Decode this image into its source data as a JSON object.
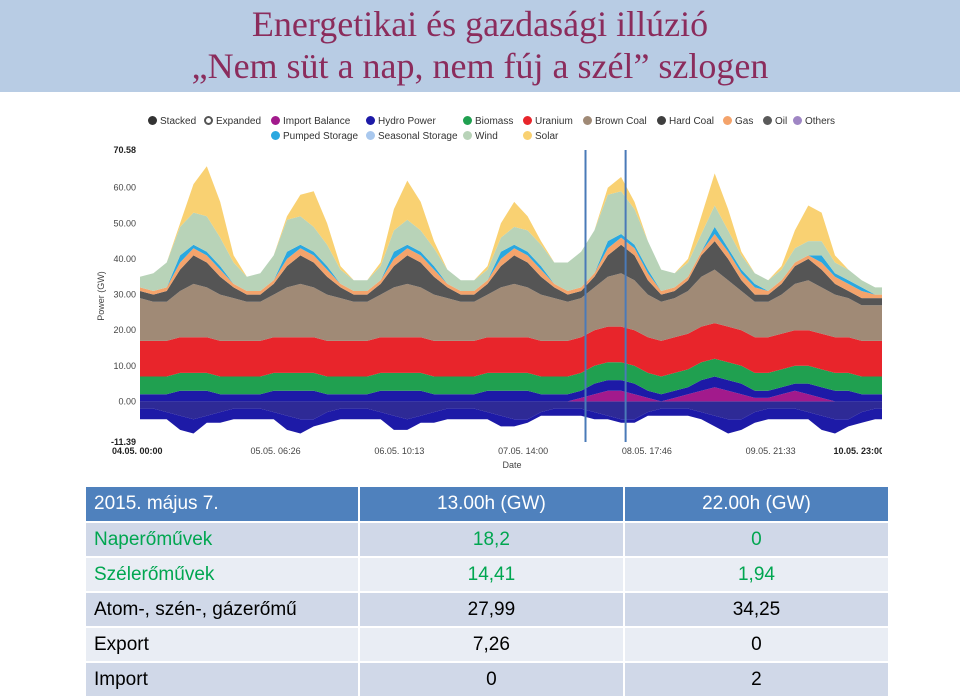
{
  "title_line1": "Energetikai és gazdasági illúzió",
  "title_line2": "„Nem süt a nap, nem fúj a szél” szlogen",
  "legend": {
    "row1": [
      {
        "label": "Stacked",
        "color": "#333333",
        "hollow": false
      },
      {
        "label": "Expanded",
        "color": "#555555",
        "hollow": true
      },
      {
        "label": "Import Balance",
        "color": "#a21a8c",
        "hollow": false
      },
      {
        "label": "Hydro Power",
        "color": "#1d1aa7",
        "hollow": false
      },
      {
        "label": "Biomass",
        "color": "#20a050",
        "hollow": false
      },
      {
        "label": "Uranium",
        "color": "#e8252b",
        "hollow": false
      },
      {
        "label": "Brown Coal",
        "color": "#a08a76",
        "hollow": false
      },
      {
        "label": "Hard Coal",
        "color": "#3f3f3f",
        "hollow": false
      },
      {
        "label": "Gas",
        "color": "#f4a36b",
        "hollow": false
      },
      {
        "label": "Oil",
        "color": "#5a5a5a",
        "hollow": false
      },
      {
        "label": "Others",
        "color": "#9f86c4",
        "hollow": false
      }
    ],
    "row2": [
      {
        "label": "Pumped Storage",
        "color": "#2aa8e0",
        "hollow": false
      },
      {
        "label": "Seasonal Storage",
        "color": "#a9c8ee",
        "hollow": false
      },
      {
        "label": "Wind",
        "color": "#b8d3b8",
        "hollow": false
      },
      {
        "label": "Solar",
        "color": "#f9d172",
        "hollow": false
      }
    ]
  },
  "chart_data": {
    "type": "area",
    "stacked": true,
    "ylabel": "Power (GW)",
    "xlabel": "Date",
    "ylim": [
      -11.39,
      70.58
    ],
    "y_tick_labels": [
      "70.58",
      "60.00",
      "50.00",
      "40.00",
      "30.00",
      "20.00",
      "10.00",
      "0.00",
      "-11.39"
    ],
    "y_tick_values": [
      70.58,
      60,
      50,
      40,
      30,
      20,
      10,
      0,
      -11.39
    ],
    "x_tick_labels": [
      "04.05. 00:00",
      "05.05. 06:26",
      "06.05. 10:13",
      "07.05. 14:00",
      "08.05. 17:46",
      "09.05. 21:33",
      "10.05. 23:00"
    ],
    "x_tick_hours": [
      0,
      30.43,
      58.22,
      86,
      113.77,
      141.55,
      167
    ],
    "markers_hours": [
      100,
      109
    ],
    "x_hours": [
      0,
      3,
      6,
      9,
      12,
      15,
      18,
      21,
      24,
      27,
      30,
      33,
      36,
      39,
      42,
      45,
      48,
      51,
      54,
      57,
      60,
      63,
      66,
      69,
      72,
      75,
      78,
      81,
      84,
      87,
      90,
      93,
      96,
      99,
      102,
      105,
      108,
      111,
      114,
      117,
      120,
      123,
      126,
      129,
      132,
      135,
      138,
      141,
      144,
      147,
      150,
      153,
      156,
      159,
      162,
      165,
      167
    ],
    "negative_series": [
      {
        "name": "Pumped Storage",
        "color": "#2e2a96",
        "values": [
          -2,
          -2,
          -3,
          -4,
          -5,
          -4,
          -3,
          -2,
          -2,
          -2,
          -3,
          -4,
          -5,
          -5,
          -3,
          -2,
          -2,
          -2,
          -3,
          -4,
          -5,
          -4,
          -3,
          -2,
          -2,
          -2,
          -3,
          -4,
          -5,
          -5,
          -3,
          -2,
          -2,
          -2,
          -3,
          -4,
          -5,
          -5,
          -3,
          -2,
          -2,
          -2,
          -3,
          -4,
          -5,
          -5,
          -3,
          -2,
          -2,
          -2,
          -3,
          -4,
          -5,
          -5,
          -3,
          -2,
          -2
        ]
      },
      {
        "name": "Import Balance",
        "color": "#1d1aa7",
        "values": [
          -3,
          -3,
          -2,
          -4,
          -4,
          -2,
          -3,
          -3,
          -3,
          -3,
          -2,
          -4,
          -4,
          -2,
          -3,
          -3,
          -3,
          -3,
          -2,
          -4,
          -3,
          -2,
          -3,
          -3,
          -3,
          -3,
          -2,
          -3,
          -2,
          -1,
          -1,
          -2,
          -2,
          -2,
          -2,
          -1,
          -1,
          -1,
          -1,
          -2,
          -2,
          -2,
          -2,
          -3,
          -4,
          -3,
          -3,
          -3,
          -3,
          -3,
          -2,
          -4,
          -4,
          -2,
          -3,
          -3,
          -3
        ]
      }
    ],
    "series": [
      {
        "name": "Import Balance",
        "color": "#a21a8c",
        "values": [
          0,
          0,
          0,
          0,
          0,
          0,
          0,
          0,
          0,
          0,
          0,
          0,
          0,
          0,
          0,
          0,
          0,
          0,
          0,
          0,
          0,
          0,
          0,
          0,
          0,
          0,
          0,
          0,
          0,
          0,
          0,
          0,
          0,
          1,
          2,
          3,
          3,
          2,
          1,
          0,
          1,
          2,
          3,
          4,
          3,
          2,
          1,
          1,
          2,
          3,
          2,
          1,
          0,
          0,
          0,
          0,
          0
        ]
      },
      {
        "name": "Hydro Power",
        "color": "#1d1aa7",
        "values": [
          2,
          2,
          2,
          3,
          3,
          3,
          2,
          2,
          2,
          2,
          3,
          3,
          3,
          3,
          2,
          2,
          2,
          2,
          3,
          3,
          3,
          3,
          2,
          2,
          2,
          2,
          3,
          3,
          3,
          3,
          2,
          2,
          2,
          2,
          3,
          3,
          3,
          3,
          2,
          2,
          2,
          2,
          3,
          3,
          3,
          3,
          2,
          2,
          2,
          2,
          3,
          3,
          3,
          3,
          2,
          2,
          2
        ]
      },
      {
        "name": "Biomass",
        "color": "#20a050",
        "values": [
          5,
          5,
          5,
          5,
          5,
          5,
          5,
          5,
          5,
          5,
          5,
          5,
          5,
          5,
          5,
          5,
          5,
          5,
          5,
          5,
          5,
          5,
          5,
          5,
          5,
          5,
          5,
          5,
          5,
          5,
          5,
          5,
          5,
          5,
          5,
          5,
          5,
          5,
          5,
          5,
          5,
          5,
          5,
          5,
          5,
          5,
          5,
          5,
          5,
          5,
          5,
          5,
          5,
          5,
          5,
          5,
          5
        ]
      },
      {
        "name": "Uranium",
        "color": "#e8252b",
        "values": [
          10,
          10,
          10,
          10,
          10,
          10,
          10,
          10,
          10,
          10,
          10,
          10,
          10,
          10,
          10,
          10,
          10,
          10,
          10,
          10,
          10,
          10,
          10,
          10,
          10,
          10,
          10,
          10,
          10,
          10,
          10,
          10,
          10,
          10,
          10,
          10,
          10,
          10,
          10,
          10,
          10,
          10,
          10,
          10,
          10,
          10,
          10,
          10,
          10,
          10,
          10,
          10,
          10,
          10,
          10,
          10,
          10
        ]
      },
      {
        "name": "Brown Coal",
        "color": "#a08a76",
        "values": [
          12,
          11,
          11,
          13,
          15,
          14,
          13,
          12,
          11,
          11,
          12,
          14,
          15,
          14,
          13,
          12,
          11,
          11,
          12,
          14,
          15,
          14,
          13,
          12,
          11,
          11,
          12,
          14,
          15,
          14,
          13,
          12,
          11,
          11,
          12,
          14,
          15,
          14,
          12,
          11,
          11,
          12,
          14,
          15,
          13,
          11,
          10,
          10,
          11,
          13,
          14,
          13,
          12,
          11,
          10,
          10,
          10
        ]
      },
      {
        "name": "Hard Coal",
        "color": "#555555",
        "values": [
          2,
          2,
          3,
          6,
          8,
          7,
          5,
          3,
          2,
          2,
          3,
          6,
          8,
          7,
          5,
          3,
          2,
          2,
          3,
          6,
          8,
          7,
          5,
          3,
          2,
          2,
          3,
          6,
          8,
          7,
          5,
          3,
          2,
          2,
          3,
          6,
          8,
          7,
          4,
          2,
          2,
          3,
          6,
          8,
          6,
          3,
          2,
          2,
          3,
          5,
          6,
          5,
          3,
          2,
          2,
          2,
          2
        ]
      },
      {
        "name": "Gas",
        "color": "#f4a36b",
        "values": [
          1,
          1,
          1,
          2,
          2,
          2,
          2,
          1,
          1,
          1,
          1,
          2,
          2,
          2,
          2,
          1,
          1,
          1,
          1,
          2,
          2,
          2,
          2,
          1,
          1,
          1,
          1,
          2,
          2,
          2,
          2,
          1,
          1,
          1,
          1,
          2,
          2,
          2,
          2,
          1,
          1,
          1,
          1,
          2,
          2,
          2,
          2,
          1,
          1,
          1,
          1,
          2,
          2,
          2,
          2,
          1,
          1
        ]
      },
      {
        "name": "Pumped Storage",
        "color": "#2aa8e0",
        "values": [
          0,
          0,
          0,
          2,
          1,
          1,
          1,
          0,
          0,
          0,
          0,
          2,
          1,
          1,
          1,
          0,
          0,
          0,
          0,
          2,
          1,
          1,
          1,
          0,
          0,
          0,
          0,
          2,
          1,
          1,
          1,
          0,
          0,
          0,
          0,
          2,
          1,
          1,
          1,
          0,
          0,
          0,
          0,
          2,
          1,
          1,
          1,
          0,
          0,
          0,
          0,
          2,
          1,
          1,
          1,
          0,
          0
        ]
      },
      {
        "name": "Wind",
        "color": "#b8d3b8",
        "values": [
          3,
          5,
          7,
          8,
          9,
          10,
          8,
          6,
          4,
          5,
          7,
          9,
          8,
          7,
          6,
          4,
          3,
          3,
          4,
          6,
          7,
          6,
          5,
          4,
          3,
          3,
          3,
          4,
          5,
          6,
          6,
          6,
          8,
          10,
          12,
          13,
          12,
          10,
          8,
          6,
          4,
          4,
          5,
          6,
          5,
          4,
          3,
          3,
          3,
          4,
          4,
          4,
          3,
          3,
          2,
          2,
          2
        ]
      },
      {
        "name": "Solar",
        "color": "#f9d172",
        "values": [
          0,
          0,
          0,
          1,
          8,
          14,
          10,
          2,
          0,
          0,
          0,
          1,
          6,
          10,
          6,
          1,
          0,
          0,
          1,
          6,
          11,
          8,
          2,
          0,
          0,
          0,
          1,
          4,
          7,
          4,
          1,
          0,
          0,
          0,
          0,
          2,
          4,
          2,
          0,
          0,
          0,
          1,
          5,
          9,
          6,
          1,
          0,
          0,
          1,
          5,
          10,
          8,
          2,
          0,
          0,
          0,
          0
        ]
      }
    ]
  },
  "table": {
    "headers": [
      "2015. május 7.",
      "13.00h (GW)",
      "22.00h (GW)"
    ],
    "rows": [
      {
        "label": "Naperőművek",
        "v1": "18,2",
        "v2": "0"
      },
      {
        "label": "Szélerőművek",
        "v1": "14,41",
        "v2": "1,94"
      },
      {
        "label": "Atom-, szén-, gázerőmű",
        "v1": "27,99",
        "v2": "34,25"
      },
      {
        "label": "Export",
        "v1": "7,26",
        "v2": "0"
      },
      {
        "label": "Import",
        "v1": "0",
        "v2": "2"
      }
    ]
  }
}
